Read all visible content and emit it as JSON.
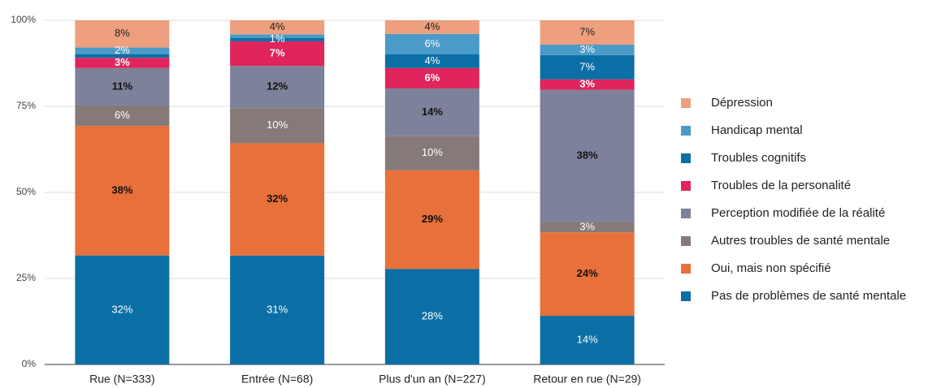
{
  "chart_data": {
    "type": "stacked_bar_100",
    "categories": [
      "Rue (N=333)",
      "Entrée (N=68)",
      "Plus d'un an (N=227)",
      "Retour en rue (N=29)"
    ],
    "series": [
      {
        "name": "Pas de problèmes de santé mentale",
        "color": "#0b6fa6",
        "values": [
          32,
          31,
          28,
          14
        ],
        "value_labels": [
          "32%",
          "31%",
          "28%",
          "14%"
        ]
      },
      {
        "name": "Oui, mais non spécifié",
        "color": "#e8703a",
        "values": [
          38,
          32,
          29,
          24
        ],
        "value_labels": [
          "38%",
          "32%",
          "29%",
          "24%"
        ]
      },
      {
        "name": "Autres troubles de santé mentale",
        "color": "#867a78",
        "values": [
          6,
          10,
          10,
          3
        ],
        "value_labels": [
          "6%",
          "10%",
          "10%",
          "3%"
        ]
      },
      {
        "name": "Perception modifiée de la réalité",
        "color": "#7d8199",
        "values": [
          11,
          12,
          14,
          38
        ],
        "value_labels": [
          "11%",
          "12%",
          "14%",
          "38%"
        ]
      },
      {
        "name": "Troubles de la personalité",
        "color": "#e0245c",
        "values": [
          3,
          7,
          6,
          3
        ],
        "value_labels": [
          "3%",
          "7%",
          "6%",
          "3%"
        ]
      },
      {
        "name": "Troubles cognitifs",
        "color": "#0b6fa6",
        "values": [
          1,
          1,
          4,
          7
        ],
        "value_labels": [
          null,
          "1%",
          "4%",
          "7%"
        ]
      },
      {
        "name": "Handicap mental",
        "color": "#4a9bc7",
        "values": [
          2,
          1,
          6,
          3
        ],
        "value_labels": [
          "2%",
          null,
          "6%",
          "3%"
        ]
      },
      {
        "name": "Dépression",
        "color": "#ee9f7e",
        "values": [
          8,
          4,
          4,
          7
        ],
        "value_labels": [
          "8%",
          "4%",
          "4%",
          "7%"
        ]
      }
    ],
    "ylim": [
      0,
      100
    ],
    "yticks": [
      {
        "value": 0,
        "label": "0%"
      },
      {
        "value": 25,
        "label": "25%"
      },
      {
        "value": 50,
        "label": "50%"
      },
      {
        "value": 75,
        "label": "75%"
      },
      {
        "value": 100,
        "label": "100%"
      }
    ],
    "grid": true,
    "legend": "right"
  }
}
